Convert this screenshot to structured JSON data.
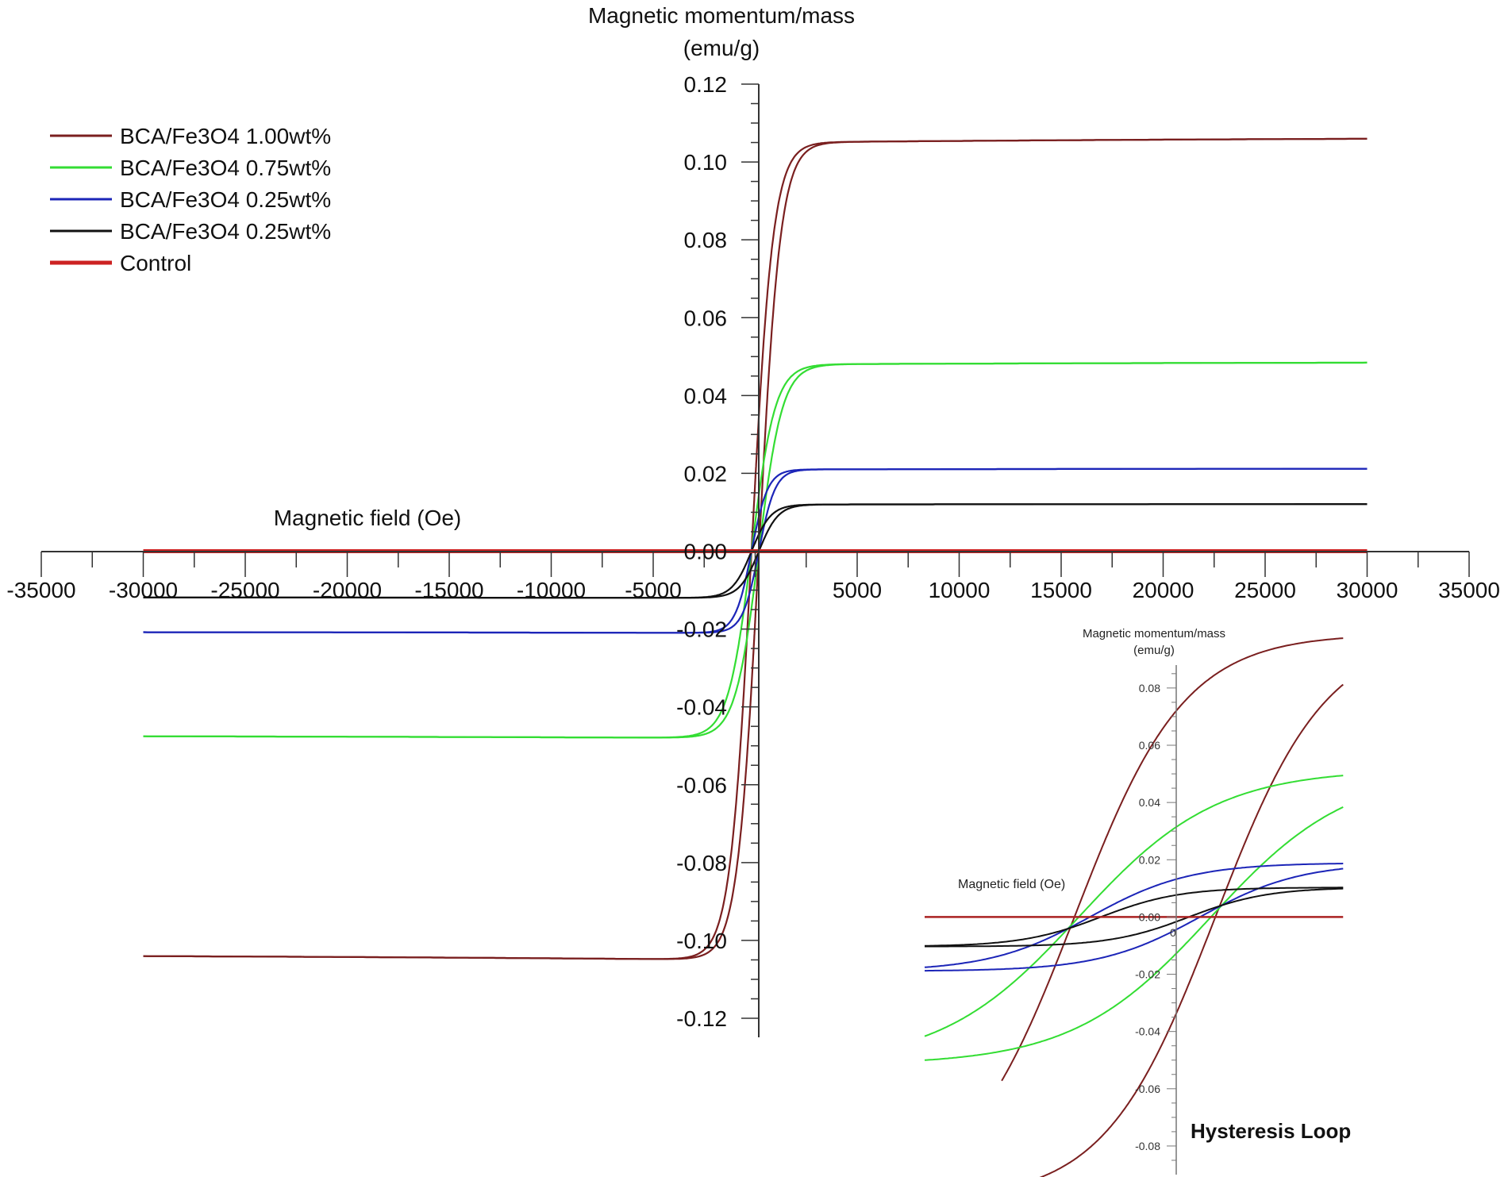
{
  "chart_data": [
    {
      "type": "line",
      "title": "",
      "ylabel": [
        "Magnetic momentum/mass",
        "(emu/g)"
      ],
      "xlabel": "Magnetic field (Oe)",
      "xlim": [
        -35000,
        35000
      ],
      "ylim": [
        -0.12,
        0.12
      ],
      "x_ticks": [
        -35000,
        -30000,
        -25000,
        -20000,
        -15000,
        -10000,
        -5000,
        0,
        5000,
        10000,
        15000,
        20000,
        25000,
        30000,
        35000
      ],
      "x_tick_labels": [
        "-35000",
        "-30000",
        "-25000",
        "-20000",
        "-15000",
        "-10000",
        "-5000",
        "0",
        "5000",
        "10000",
        "15000",
        "20000",
        "25000",
        "30000",
        "35000"
      ],
      "y_ticks": [
        0.12,
        0.1,
        0.08,
        0.06,
        0.04,
        0.02,
        0.0,
        -0.02,
        -0.04,
        -0.06,
        -0.08,
        -0.1,
        -0.12
      ],
      "y_tick_labels": [
        "0.12",
        "0.10",
        "0.08",
        "0.06",
        "0.04",
        "0.02",
        "0.00",
        "-0.02",
        "-0.04",
        "-0.06",
        "-0.08",
        "-0.10",
        "-0.12"
      ],
      "legend_position": "top-left",
      "series": [
        {
          "name": "BCA/Fe3O4 1.00wt%",
          "color": "#7a1f1f",
          "ms": 0.105,
          "hk": 1050
        },
        {
          "name": "BCA/Fe3O4 0.75wt%",
          "color": "#33dd33",
          "ms": 0.048,
          "hk": 1150
        },
        {
          "name": "BCA/Fe3O4 0.25wt%",
          "color": "#1c25b8",
          "ms": 0.021,
          "hk": 800
        },
        {
          "name": "BCA/Fe3O4 0.25wt%",
          "color": "#111111",
          "ms": 0.012,
          "hk": 950
        },
        {
          "name": "Control",
          "color": "#cc2222",
          "ms": 0.0,
          "hk": 1
        }
      ]
    },
    {
      "type": "line",
      "title": "Hysteresis Loop",
      "ylabel": [
        "Magnetic momentum/mass",
        "(emu/g)"
      ],
      "xlabel": "Magnetic field (Oe)",
      "origin_label": "0",
      "xlim": [
        -1,
        1
      ],
      "ylim": [
        -0.09,
        0.088
      ],
      "y_ticks": [
        0.08,
        0.06,
        0.04,
        0.02,
        0.0,
        -0.02,
        -0.04,
        -0.06,
        -0.08
      ],
      "y_tick_labels": [
        "0.08",
        "0.06",
        "0.04",
        "0.02",
        "0.00",
        "-0.02",
        "-0.04",
        "-0.06",
        "-0.08"
      ],
      "series": [
        {
          "name": "BCA/Fe3O4 1.00wt%",
          "color": "#7a1f1f",
          "ms": 0.115,
          "hc": 0.32,
          "k": 2.0,
          "xmin": -0.65,
          "xmax": 0.9
        },
        {
          "name": "BCA/Fe3O4 0.75wt%",
          "color": "#33dd33",
          "ms": 0.06,
          "hc": 0.3,
          "k": 1.6,
          "xmin": -1.0,
          "xmax": 0.9
        },
        {
          "name": "BCA/Fe3O4 0.25wt%",
          "color": "#1c25b8",
          "ms": 0.022,
          "hc": 0.25,
          "k": 2.2,
          "xmin": -1.0,
          "xmax": 0.9
        },
        {
          "name": "BCA/Fe3O4 0.25wt%",
          "color": "#111111",
          "ms": 0.012,
          "hc": 0.2,
          "k": 2.8,
          "xmin": -1.0,
          "xmax": 0.9
        },
        {
          "name": "Control",
          "color": "#aa2222",
          "ms": 0.0,
          "hc": 0.0,
          "k": 1.0,
          "xmin": -1.0,
          "xmax": 0.9
        }
      ]
    }
  ]
}
